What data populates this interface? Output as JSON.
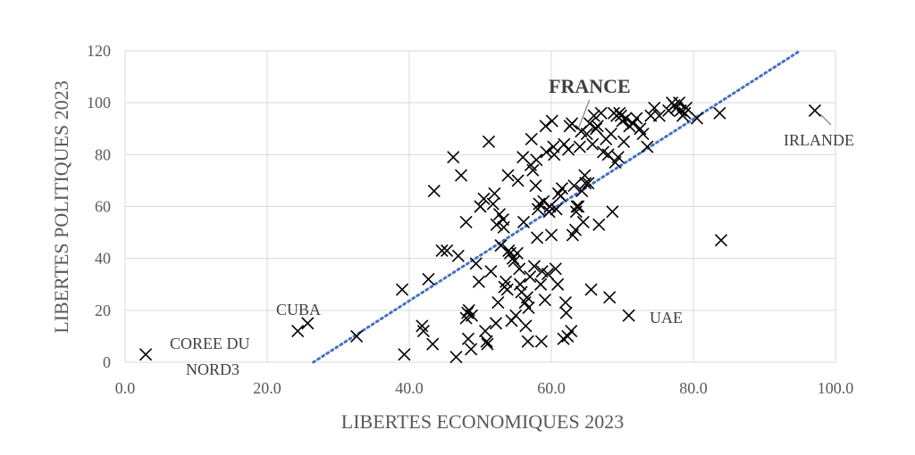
{
  "chart_data": {
    "type": "scatter",
    "title": "",
    "xlabel": "LIBERTES ECONOMIQUES 2023",
    "ylabel": "LIBERTES POLITIQUES 2023",
    "xlim": [
      0,
      100
    ],
    "ylim": [
      0,
      120
    ],
    "x_ticks": [
      "0.0",
      "20.0",
      "40.0",
      "60.0",
      "80.0",
      "100.0"
    ],
    "y_ticks": [
      "0",
      "20",
      "40",
      "60",
      "80",
      "100",
      "120"
    ],
    "grid": true,
    "marker": "x",
    "trendline": {
      "style": "dotted",
      "color": "#4472c4",
      "from": [
        26.5,
        0
      ],
      "to": [
        95,
        120
      ]
    },
    "annotations": [
      {
        "text": "FRANCE",
        "x": 63.6,
        "y": 89,
        "bold": true
      },
      {
        "text": "IRLANDE",
        "x": 97.1,
        "y": 97
      },
      {
        "text": "UAE",
        "x": 70.9,
        "y": 18
      },
      {
        "text": "CUBA",
        "x": 25.7,
        "y": 15
      },
      {
        "text": "COREE DU",
        "x": 2.9,
        "y": 3
      },
      {
        "text": "NORD3",
        "x": 2.9,
        "y": 3
      }
    ],
    "points": [
      [
        2.9,
        3
      ],
      [
        24.3,
        12
      ],
      [
        25.7,
        15
      ],
      [
        32.6,
        10
      ],
      [
        39.0,
        28
      ],
      [
        39.3,
        3
      ],
      [
        41.8,
        14
      ],
      [
        42.0,
        12
      ],
      [
        42.7,
        32
      ],
      [
        43.3,
        7
      ],
      [
        43.5,
        66
      ],
      [
        44.6,
        43
      ],
      [
        45.3,
        43
      ],
      [
        46.2,
        79
      ],
      [
        46.6,
        2
      ],
      [
        46.9,
        41
      ],
      [
        47.3,
        72
      ],
      [
        48.0,
        54
      ],
      [
        48.2,
        19
      ],
      [
        48.4,
        20
      ],
      [
        48.7,
        5
      ],
      [
        48.8,
        18
      ],
      [
        48.0,
        17
      ],
      [
        48.3,
        9
      ],
      [
        49.4,
        38
      ],
      [
        49.8,
        31
      ],
      [
        50.0,
        60
      ],
      [
        50.5,
        63
      ],
      [
        50.7,
        12
      ],
      [
        50.9,
        8
      ],
      [
        51.0,
        7
      ],
      [
        51.2,
        85
      ],
      [
        51.5,
        35
      ],
      [
        51.8,
        61
      ],
      [
        52.0,
        65
      ],
      [
        52.2,
        15
      ],
      [
        52.3,
        53
      ],
      [
        52.5,
        23
      ],
      [
        52.7,
        57
      ],
      [
        52.9,
        45
      ],
      [
        53.2,
        55
      ],
      [
        53.3,
        52
      ],
      [
        53.4,
        29
      ],
      [
        53.6,
        31
      ],
      [
        53.8,
        28
      ],
      [
        53.9,
        72
      ],
      [
        54.0,
        43
      ],
      [
        54.2,
        42
      ],
      [
        54.4,
        16
      ],
      [
        54.6,
        40
      ],
      [
        54.8,
        39
      ],
      [
        55.0,
        18
      ],
      [
        55.2,
        42
      ],
      [
        55.3,
        70
      ],
      [
        55.5,
        36
      ],
      [
        55.6,
        30
      ],
      [
        55.8,
        27
      ],
      [
        56.0,
        79
      ],
      [
        56.1,
        54
      ],
      [
        56.3,
        23
      ],
      [
        56.4,
        14
      ],
      [
        56.6,
        25
      ],
      [
        56.7,
        8
      ],
      [
        56.8,
        21
      ],
      [
        57.0,
        33
      ],
      [
        57.1,
        76
      ],
      [
        57.2,
        86
      ],
      [
        57.4,
        74
      ],
      [
        57.6,
        37
      ],
      [
        57.8,
        68
      ],
      [
        57.9,
        78
      ],
      [
        58.0,
        48
      ],
      [
        58.1,
        59
      ],
      [
        58.3,
        61
      ],
      [
        58.5,
        30
      ],
      [
        58.6,
        8
      ],
      [
        58.7,
        35
      ],
      [
        58.9,
        62
      ],
      [
        59.1,
        24
      ],
      [
        59.2,
        91
      ],
      [
        59.3,
        81
      ],
      [
        59.5,
        34
      ],
      [
        59.7,
        58
      ],
      [
        59.8,
        60
      ],
      [
        60.0,
        49
      ],
      [
        60.1,
        93
      ],
      [
        60.3,
        83
      ],
      [
        60.4,
        80
      ],
      [
        60.6,
        36
      ],
      [
        60.7,
        59
      ],
      [
        60.9,
        30
      ],
      [
        61.0,
        65
      ],
      [
        61.3,
        64
      ],
      [
        61.5,
        67
      ],
      [
        61.7,
        9
      ],
      [
        61.8,
        84
      ],
      [
        62.0,
        23
      ],
      [
        62.1,
        19
      ],
      [
        62.3,
        10
      ],
      [
        62.4,
        82
      ],
      [
        62.6,
        91
      ],
      [
        62.8,
        12
      ],
      [
        62.9,
        92
      ],
      [
        63.0,
        49
      ],
      [
        63.2,
        68
      ],
      [
        63.4,
        51
      ],
      [
        63.5,
        58
      ],
      [
        63.6,
        60
      ],
      [
        63.8,
        60
      ],
      [
        64.0,
        83
      ],
      [
        64.2,
        89
      ],
      [
        64.3,
        66
      ],
      [
        64.5,
        54
      ],
      [
        64.7,
        72
      ],
      [
        64.8,
        69
      ],
      [
        65.0,
        88
      ],
      [
        65.2,
        69
      ],
      [
        65.4,
        92
      ],
      [
        65.6,
        28
      ],
      [
        65.8,
        84
      ],
      [
        66.0,
        95
      ],
      [
        66.3,
        90
      ],
      [
        66.5,
        91
      ],
      [
        66.7,
        53
      ],
      [
        67.0,
        96
      ],
      [
        67.3,
        81
      ],
      [
        67.7,
        86
      ],
      [
        68.0,
        80
      ],
      [
        68.2,
        25
      ],
      [
        68.4,
        88
      ],
      [
        68.6,
        58
      ],
      [
        68.8,
        96
      ],
      [
        69.0,
        77
      ],
      [
        69.2,
        95
      ],
      [
        69.4,
        79
      ],
      [
        69.6,
        96
      ],
      [
        69.8,
        95
      ],
      [
        70.0,
        93
      ],
      [
        70.2,
        85
      ],
      [
        70.5,
        94
      ],
      [
        70.9,
        18
      ],
      [
        71.0,
        91
      ],
      [
        71.5,
        92
      ],
      [
        72.0,
        94
      ],
      [
        72.5,
        90
      ],
      [
        72.9,
        88
      ],
      [
        73.5,
        83
      ],
      [
        74.0,
        95
      ],
      [
        74.5,
        98
      ],
      [
        75.2,
        95
      ],
      [
        76.5,
        97
      ],
      [
        77.0,
        100
      ],
      [
        77.3,
        99
      ],
      [
        77.6,
        98
      ],
      [
        78.0,
        100
      ],
      [
        78.2,
        97
      ],
      [
        78.5,
        95
      ],
      [
        78.8,
        96
      ],
      [
        79.0,
        98
      ],
      [
        80.5,
        94
      ],
      [
        83.7,
        96
      ],
      [
        83.9,
        47
      ],
      [
        97.1,
        97
      ]
    ]
  }
}
